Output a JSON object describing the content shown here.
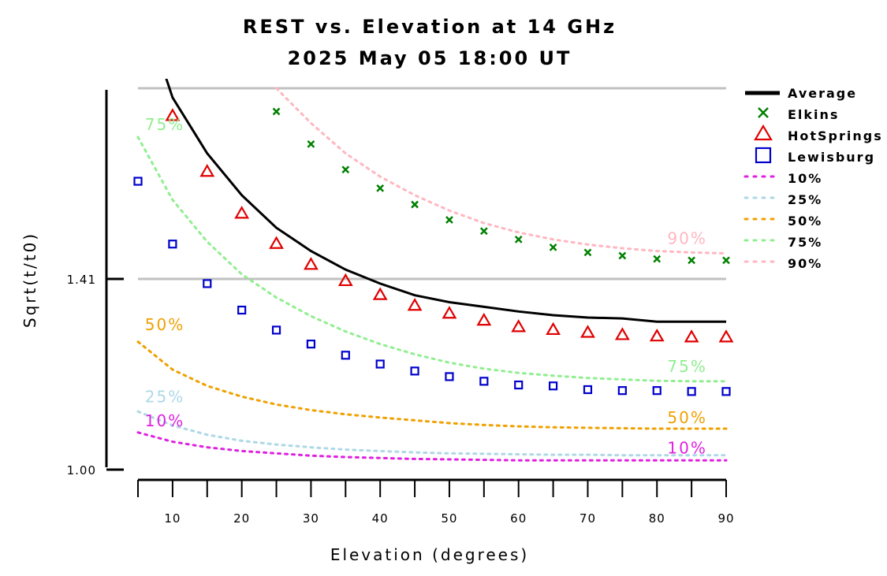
{
  "chart_data": {
    "type": "line",
    "title": "REST vs. Elevation at 14 GHz",
    "subtitle": "2025 May 05 18:00 UT",
    "xlabel": "Elevation (degrees)",
    "ylabel": "Sqrt(t/t0)",
    "xlim": [
      5,
      90
    ],
    "ylim": [
      1.0,
      1.82
    ],
    "x_ticks": [
      10,
      20,
      30,
      40,
      50,
      60,
      70,
      80,
      90
    ],
    "x_tick_labels": [
      "10",
      "20",
      "30",
      "40",
      "50",
      "60",
      "70",
      "80",
      "90"
    ],
    "y_ticks": [
      1.0,
      1.41
    ],
    "y_tick_labels": [
      "1.00",
      "1.41"
    ],
    "gridlines": [
      1.41,
      1.82
    ],
    "legend_position": "right",
    "x": [
      5,
      10,
      15,
      20,
      25,
      30,
      35,
      40,
      45,
      50,
      55,
      60,
      65,
      70,
      75,
      80,
      85,
      90
    ],
    "series": [
      {
        "name": "Average",
        "kind": "line",
        "color": "#000000",
        "values": [
          null,
          1.8,
          1.68,
          1.59,
          1.52,
          1.47,
          1.43,
          1.4,
          1.375,
          1.36,
          1.35,
          1.34,
          1.332,
          1.327,
          1.325,
          1.318,
          1.318,
          1.318
        ]
      },
      {
        "name": "Elkins",
        "kind": "x-marker",
        "color": "#008000",
        "values": [
          null,
          null,
          null,
          null,
          1.77,
          1.7,
          1.645,
          1.605,
          1.57,
          1.537,
          1.513,
          1.495,
          1.478,
          1.467,
          1.46,
          1.453,
          1.45,
          1.45
        ]
      },
      {
        "name": "HotSprings",
        "kind": "triangle-marker",
        "color": "#e00000",
        "values": [
          null,
          1.76,
          1.64,
          1.55,
          1.485,
          1.44,
          1.405,
          1.375,
          1.352,
          1.335,
          1.32,
          1.306,
          1.3,
          1.294,
          1.289,
          1.286,
          1.284,
          1.284
        ]
      },
      {
        "name": "Lewisburg",
        "kind": "square-marker",
        "color": "#0000cc",
        "values": [
          1.62,
          1.485,
          1.4,
          1.343,
          1.3,
          1.27,
          1.246,
          1.227,
          1.212,
          1.2,
          1.19,
          1.182,
          1.18,
          1.172,
          1.17,
          1.17,
          1.168,
          1.168
        ]
      },
      {
        "name": "10%",
        "kind": "dotted",
        "color": "#e020e0",
        "values": [
          1.08,
          1.06,
          1.048,
          1.04,
          1.035,
          1.03,
          1.027,
          1.025,
          1.023,
          1.022,
          1.021,
          1.02,
          1.02,
          1.02,
          1.02,
          1.02,
          1.02,
          1.02
        ]
      },
      {
        "name": "25%",
        "kind": "dotted",
        "color": "#add8e6",
        "values": [
          1.125,
          1.095,
          1.075,
          1.062,
          1.054,
          1.048,
          1.043,
          1.04,
          1.037,
          1.035,
          1.034,
          1.033,
          1.032,
          1.032,
          1.031,
          1.031,
          1.031,
          1.031
        ]
      },
      {
        "name": "50%",
        "kind": "dotted",
        "color": "#f0a000",
        "values": [
          1.275,
          1.215,
          1.18,
          1.157,
          1.14,
          1.128,
          1.119,
          1.112,
          1.106,
          1.1,
          1.096,
          1.093,
          1.091,
          1.09,
          1.089,
          1.088,
          1.088,
          1.088
        ]
      },
      {
        "name": "75%",
        "kind": "dotted",
        "color": "#90ee90",
        "values": [
          1.715,
          1.58,
          1.49,
          1.42,
          1.37,
          1.33,
          1.297,
          1.27,
          1.248,
          1.23,
          1.217,
          1.208,
          1.202,
          1.197,
          1.194,
          1.191,
          1.19,
          1.19
        ]
      },
      {
        "name": "90%",
        "kind": "dotted",
        "color": "#ffb6c1",
        "values": [
          null,
          null,
          null,
          null,
          1.82,
          1.745,
          1.68,
          1.63,
          1.59,
          1.557,
          1.53,
          1.51,
          1.495,
          1.484,
          1.476,
          1.47,
          1.467,
          1.465
        ]
      }
    ],
    "annotations": [
      {
        "text": "75%",
        "color": "#90ee90",
        "x": 6,
        "y": 1.73
      },
      {
        "text": "50%",
        "color": "#f0a000",
        "x": 6,
        "y": 1.3
      },
      {
        "text": "25%",
        "color": "#add8e6",
        "x": 6,
        "y": 1.145
      },
      {
        "text": "10%",
        "color": "#e020e0",
        "x": 6,
        "y": 1.093
      },
      {
        "text": "90%",
        "color": "#ffb6c1",
        "x": 81.5,
        "y": 1.485
      },
      {
        "text": "75%",
        "color": "#90ee90",
        "x": 81.5,
        "y": 1.21
      },
      {
        "text": "50%",
        "color": "#f0a000",
        "x": 81.5,
        "y": 1.1
      },
      {
        "text": "10%",
        "color": "#e020e0",
        "x": 81.5,
        "y": 1.035
      }
    ]
  }
}
